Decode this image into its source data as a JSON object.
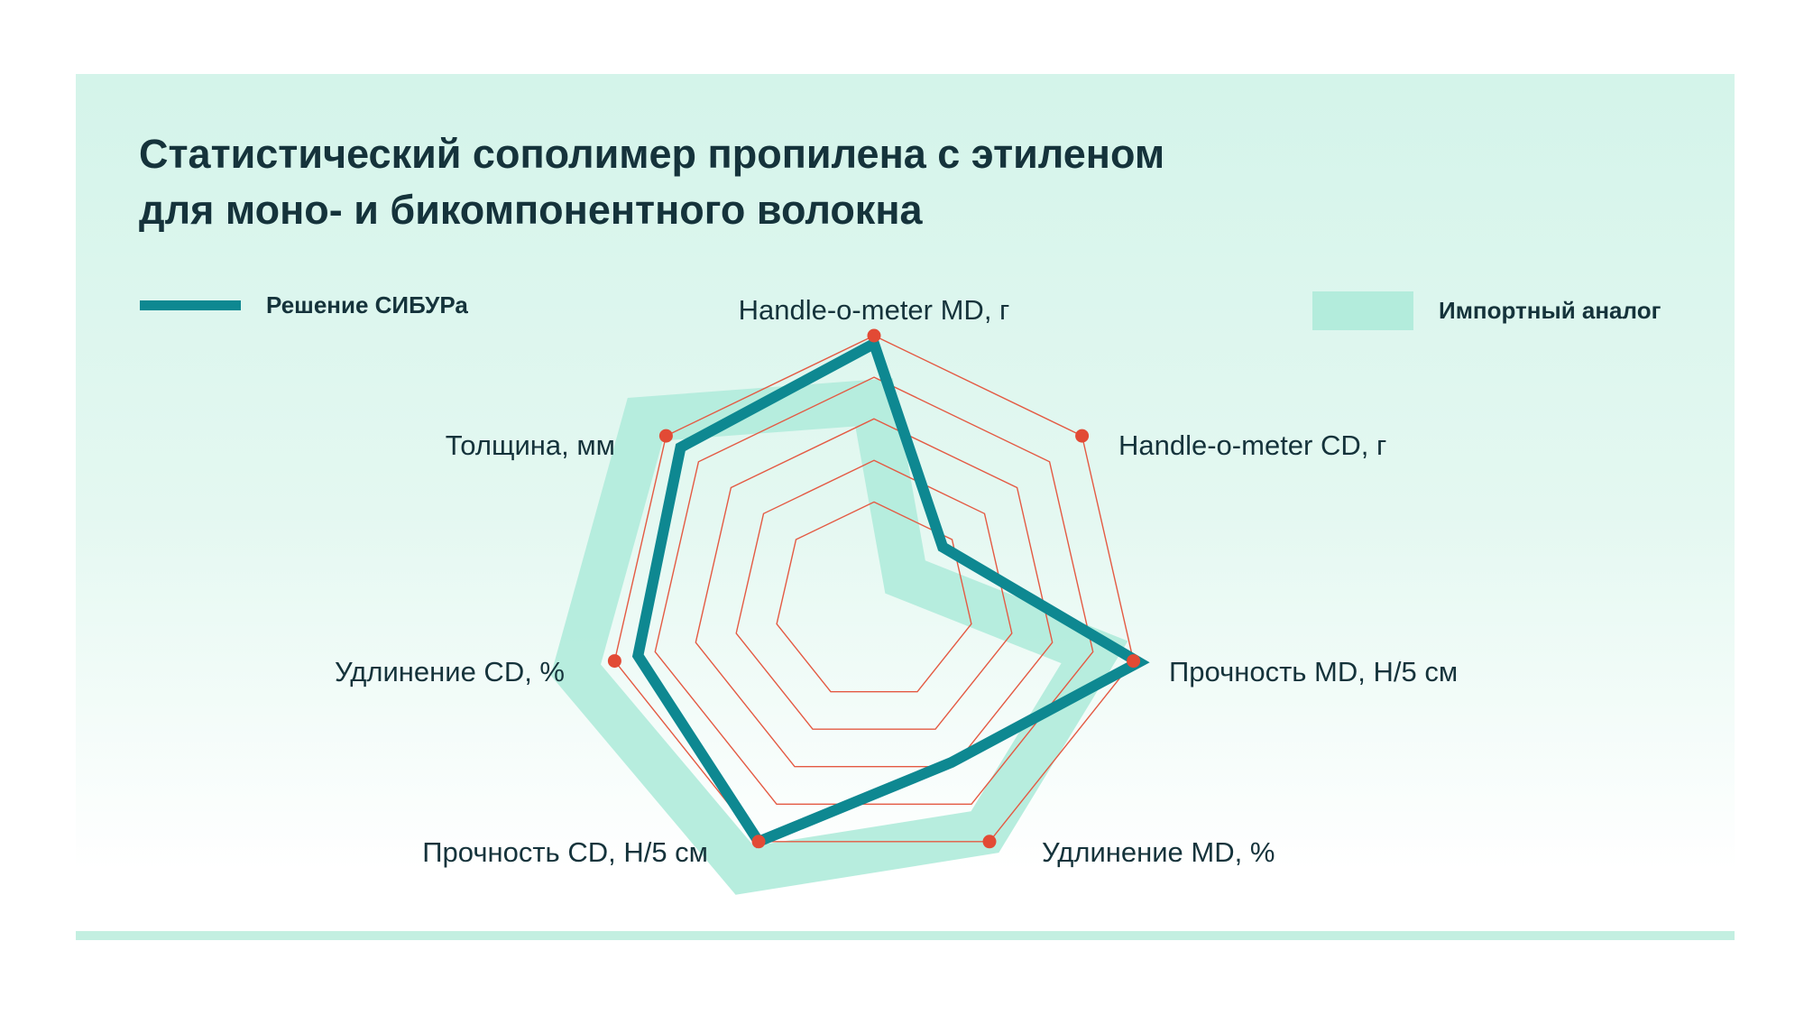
{
  "title": {
    "line1": "Статистический сополимер пропилена с этиленом",
    "line2": "для моно- и бикомпонентного волокна"
  },
  "legend": {
    "sibur_label": "Решение СИБУРа",
    "import_label": "Импортный аналог"
  },
  "colors": {
    "sibur": "#0e8891",
    "import": "#b3ecdc",
    "grid": "#e45a43",
    "marker": "#e24a35",
    "text": "#15333b"
  },
  "chart_data": {
    "type": "radar",
    "title": "Статистический сополимер пропилена с этиленом для моно- и бикомпонентного волокна",
    "categories": [
      "Handle-o-meter MD, г",
      "Handle-o-meter CD, г",
      "Прочность MD, Н/5 см",
      "Удлинение MD, %",
      "Прочность CD, Н/5 см",
      "Удлинение CD, %",
      "Толщина, мм"
    ],
    "rings": 5,
    "range": [
      0,
      1
    ],
    "grid": true,
    "legend_position": "top",
    "series": [
      {
        "name": "Решение СИБУРа",
        "style": "line",
        "values": [
          0.97,
          0.33,
          1.02,
          0.67,
          1.0,
          0.91,
          0.93
        ]
      },
      {
        "name": "Импортный аналог",
        "style": "band",
        "values": [
          0.75,
          0.15,
          0.85,
          0.96,
          1.12,
          1.15,
          1.1
        ],
        "band_width": 0.17
      }
    ]
  }
}
